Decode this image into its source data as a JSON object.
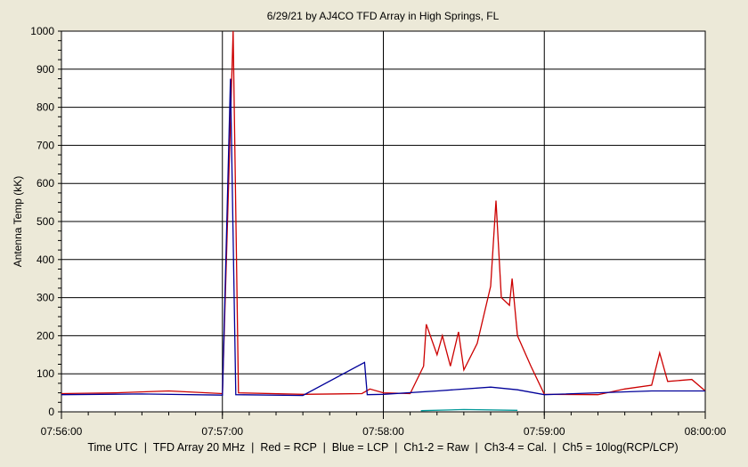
{
  "chart_data": {
    "type": "line",
    "title": "6/29/21  by  AJ4CO TFD Array  in  High Springs, FL",
    "ylabel": "Antenna Temp (kK)",
    "xlabel": "Time UTC  |  TFD Array 20 MHz  |  Red = RCP  |  Blue = LCP  |  Ch1-2 = Raw  |  Ch3-4 = Cal.  |  Ch5 = 10log(RCP/LCP)",
    "y_ticks": [
      "0",
      "100",
      "200",
      "300",
      "400",
      "500",
      "600",
      "700",
      "800",
      "900",
      "1000"
    ],
    "x_ticks": [
      "07:56:00",
      "07:57:00",
      "07:58:00",
      "07:59:00",
      "08:00:00"
    ],
    "xlim": [
      "07:56:00",
      "08:00:00"
    ],
    "ylim": [
      0,
      1000
    ],
    "grid": true,
    "colors": {
      "rcp": "#cc0000",
      "lcp": "#000099",
      "ch5": "#009999",
      "plot_bg": "#ffffff",
      "grid": "#000000"
    },
    "series": [
      {
        "name": "Red = RCP",
        "color": "#cc0000",
        "points": [
          [
            "07:56:00",
            48
          ],
          [
            "07:56:20",
            50
          ],
          [
            "07:56:40",
            55
          ],
          [
            "07:57:00",
            48
          ],
          [
            "07:57:04",
            1000
          ],
          [
            "07:57:06",
            50
          ],
          [
            "07:57:30",
            46
          ],
          [
            "07:57:52",
            48
          ],
          [
            "07:57:55",
            60
          ],
          [
            "07:58:00",
            50
          ],
          [
            "07:58:10",
            48
          ],
          [
            "07:58:15",
            120
          ],
          [
            "07:58:16",
            230
          ],
          [
            "07:58:20",
            150
          ],
          [
            "07:58:22",
            200
          ],
          [
            "07:58:25",
            120
          ],
          [
            "07:58:28",
            210
          ],
          [
            "07:58:30",
            110
          ],
          [
            "07:58:35",
            180
          ],
          [
            "07:58:40",
            330
          ],
          [
            "07:58:42",
            555
          ],
          [
            "07:58:44",
            300
          ],
          [
            "07:58:47",
            280
          ],
          [
            "07:58:48",
            350
          ],
          [
            "07:58:50",
            200
          ],
          [
            "07:58:55",
            120
          ],
          [
            "07:59:00",
            46
          ],
          [
            "07:59:20",
            45
          ],
          [
            "07:59:30",
            60
          ],
          [
            "07:59:40",
            70
          ],
          [
            "07:59:43",
            155
          ],
          [
            "07:59:46",
            80
          ],
          [
            "07:59:55",
            85
          ],
          [
            "08:00:00",
            55
          ]
        ]
      },
      {
        "name": "Blue = LCP",
        "color": "#000099",
        "points": [
          [
            "07:56:00",
            45
          ],
          [
            "07:56:30",
            47
          ],
          [
            "07:57:00",
            44
          ],
          [
            "07:57:03",
            875
          ],
          [
            "07:57:05",
            45
          ],
          [
            "07:57:30",
            43
          ],
          [
            "07:57:53",
            130
          ],
          [
            "07:57:54",
            45
          ],
          [
            "07:58:00",
            46
          ],
          [
            "07:58:20",
            55
          ],
          [
            "07:58:40",
            65
          ],
          [
            "07:58:50",
            58
          ],
          [
            "07:59:00",
            45
          ],
          [
            "07:59:40",
            55
          ],
          [
            "08:00:00",
            55
          ]
        ]
      },
      {
        "name": "Ch5 = 10log(RCP/LCP)",
        "color": "#009999",
        "points": [
          [
            "07:58:14",
            3
          ],
          [
            "07:58:30",
            6
          ],
          [
            "07:58:50",
            4
          ]
        ]
      }
    ]
  }
}
